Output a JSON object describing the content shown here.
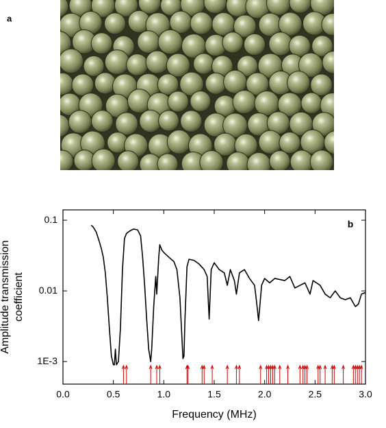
{
  "panel_a": {
    "label": "a"
  },
  "chart_data": {
    "type": "line",
    "panel_label": "b",
    "xlabel": "Frequency (MHz)",
    "ylabel": [
      "Amplitude transmission",
      "coefficient"
    ],
    "log_y": true,
    "xlim": [
      0,
      3
    ],
    "ylim": [
      0.00048,
      0.14
    ],
    "xticks": [
      {
        "value": 0,
        "label": "0.0"
      },
      {
        "value": 0.5,
        "label": "0.5"
      },
      {
        "value": 1,
        "label": "1.0"
      },
      {
        "value": 1.5,
        "label": "1.5"
      },
      {
        "value": 2,
        "label": "2.0"
      },
      {
        "value": 2.5,
        "label": "2.5"
      },
      {
        "value": 3,
        "label": "3.0"
      }
    ],
    "yticks": [
      0.1,
      0.01,
      {
        "value": 0.001,
        "label": "1E-3"
      }
    ],
    "series": [
      {
        "color": "#000000",
        "x": [
          0.28,
          0.3,
          0.33,
          0.36,
          0.38,
          0.4,
          0.42,
          0.44,
          0.46,
          0.48,
          0.5,
          0.51,
          0.52,
          0.53,
          0.55,
          0.57,
          0.59,
          0.61,
          0.63,
          0.66,
          0.7,
          0.74,
          0.77,
          0.79,
          0.81,
          0.83,
          0.85,
          0.87,
          0.88,
          0.9,
          0.92,
          0.93,
          0.95,
          0.96,
          0.98,
          1.0,
          1.05,
          1.1,
          1.13,
          1.16,
          1.19,
          1.2,
          1.21,
          1.23,
          1.25,
          1.3,
          1.35,
          1.4,
          1.43,
          1.45,
          1.47,
          1.5,
          1.55,
          1.6,
          1.63,
          1.66,
          1.7,
          1.72,
          1.75,
          1.8,
          1.85,
          1.9,
          1.92,
          1.94,
          1.97,
          2.0,
          2.05,
          2.1,
          2.2,
          2.25,
          2.3,
          2.4,
          2.45,
          2.48,
          2.55,
          2.6,
          2.65,
          2.7,
          2.75,
          2.8,
          2.85,
          2.9,
          2.93,
          2.96,
          3.0
        ],
        "values": [
          0.085,
          0.08,
          0.068,
          0.05,
          0.04,
          0.03,
          0.018,
          0.008,
          0.003,
          0.0012,
          0.0009,
          0.0009,
          0.0015,
          0.0009,
          0.001,
          0.003,
          0.02,
          0.055,
          0.065,
          0.07,
          0.075,
          0.073,
          0.06,
          0.03,
          0.012,
          0.004,
          0.0015,
          0.001,
          0.0015,
          0.006,
          0.016,
          0.009,
          0.03,
          0.045,
          0.038,
          0.035,
          0.03,
          0.026,
          0.02,
          0.008,
          0.0011,
          0.0012,
          0.004,
          0.022,
          0.028,
          0.027,
          0.024,
          0.02,
          0.016,
          0.004,
          0.02,
          0.025,
          0.02,
          0.018,
          0.012,
          0.02,
          0.014,
          0.009,
          0.018,
          0.02,
          0.015,
          0.012,
          0.007,
          0.0038,
          0.012,
          0.015,
          0.013,
          0.015,
          0.014,
          0.016,
          0.011,
          0.013,
          0.009,
          0.014,
          0.012,
          0.009,
          0.008,
          0.01,
          0.008,
          0.0075,
          0.008,
          0.006,
          0.0065,
          0.009,
          0.0095
        ]
      }
    ],
    "markers": {
      "color": "#cc0000",
      "x": [
        0.6,
        0.63,
        0.87,
        0.93,
        0.96,
        1.23,
        1.24,
        1.38,
        1.4,
        1.48,
        1.63,
        1.72,
        1.75,
        1.96,
        2.02,
        2.04,
        2.06,
        2.08,
        2.1,
        2.15,
        2.23,
        2.35,
        2.38,
        2.4,
        2.42,
        2.53,
        2.55,
        2.6,
        2.67,
        2.69,
        2.78,
        2.88,
        2.9,
        2.92,
        2.94,
        2.96
      ]
    }
  }
}
